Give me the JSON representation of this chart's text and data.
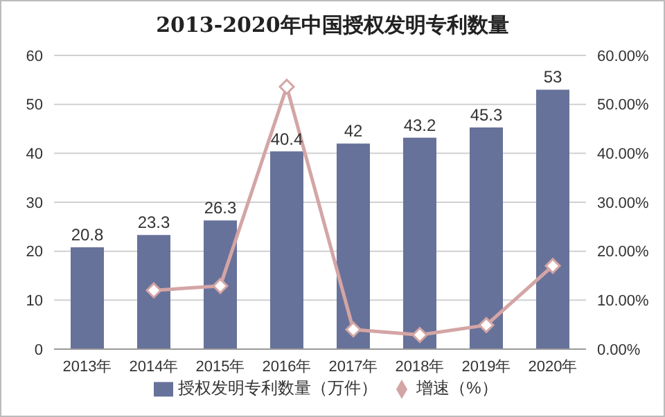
{
  "chart_data": {
    "type": "bar",
    "title": "2013-2020年中国授权发明专利数量",
    "categories": [
      "2013年",
      "2014年",
      "2015年",
      "2016年",
      "2017年",
      "2018年",
      "2019年",
      "2020年"
    ],
    "series": [
      {
        "name": "授权发明专利数量（万件）",
        "color": "#67729a",
        "values": [
          20.8,
          23.3,
          26.3,
          40.4,
          42,
          43.2,
          45.3,
          53
        ],
        "value_labels": [
          "20.8",
          "23.3",
          "26.3",
          "40.4",
          "42",
          "43.2",
          "45.3",
          "53"
        ]
      },
      {
        "name": "增速（%）",
        "type": "line",
        "axis": "y2",
        "color": "#d4a5a5",
        "marker": "diamond",
        "values": [
          null,
          12.0,
          12.9,
          53.6,
          4.0,
          2.9,
          4.9,
          17.0
        ]
      }
    ],
    "ylim": [
      0,
      60
    ],
    "yticks": [
      0,
      10,
      20,
      30,
      40,
      50,
      60
    ],
    "y2lim": [
      0,
      60
    ],
    "y2ticks": [
      {
        "value": 0,
        "label": "0.00%"
      },
      {
        "value": 10,
        "label": "10.00%"
      },
      {
        "value": 20,
        "label": "20.00%"
      },
      {
        "value": 30,
        "label": "30.00%"
      },
      {
        "value": 40,
        "label": "40.00%"
      },
      {
        "value": 50,
        "label": "50.00%"
      },
      {
        "value": 60,
        "label": "60.00%"
      }
    ],
    "grid": "y",
    "legend": "bottom"
  }
}
